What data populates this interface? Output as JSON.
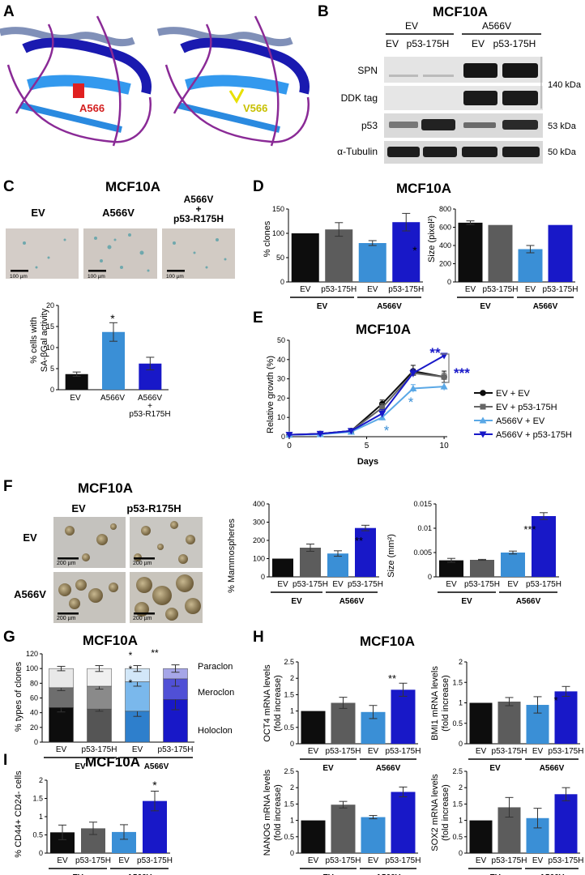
{
  "colors": {
    "ev": "#0d0d0d",
    "p53": "#5c5c5c",
    "a566v": "#3a8fd6",
    "a566v_p53": "#1818c8"
  },
  "panel_letters": {
    "a": "A",
    "b": "B",
    "c": "C",
    "d": "D",
    "e": "E",
    "f": "F",
    "g": "G",
    "h": "H",
    "i": "I"
  },
  "a": {
    "left_label": "A566",
    "right_label": "V566"
  },
  "b": {
    "title": "MCF10A",
    "group_ev": "EV",
    "group_a566v": "A566V",
    "lanes": [
      "EV",
      "p53-175H",
      "EV",
      "p53-175H"
    ],
    "rows": [
      "SPN",
      "DDK tag",
      "p53",
      "α-Tubulin"
    ],
    "kda": [
      "140 kDa",
      "53 kDa",
      "50 kDa"
    ]
  },
  "c": {
    "title": "MCF10A",
    "img_labels": [
      "EV",
      "A566V",
      "A566V",
      "+",
      "p53-R175H"
    ],
    "scale": "100 µm",
    "ylabel": [
      "% cells with",
      "SA-βGal activity"
    ],
    "xlabels": [
      "EV",
      "A566V",
      "A566V",
      "+",
      "p53-R175H"
    ],
    "star": "*"
  },
  "d": {
    "title": "MCF10A",
    "ylabel1": "% clones",
    "ylabel2": "Size (pixel²)",
    "xlabels": [
      "EV",
      "p53-175H",
      "EV",
      "p53-175H"
    ],
    "groups": [
      "EV",
      "A566V"
    ],
    "star": "*"
  },
  "e": {
    "title": "MCF10A",
    "ylabel": "Relative growth (%)",
    "xlabel": "Days",
    "legend": [
      "EV + EV",
      "EV + p53-175H",
      "A566V + EV",
      "A566V + p53-175H"
    ],
    "stars": [
      "**",
      "***",
      "*",
      "*"
    ]
  },
  "f": {
    "title": "MCF10A",
    "col_labels": [
      "EV",
      "p53-R175H"
    ],
    "row_labels": [
      "EV",
      "A566V"
    ],
    "scale": "200 µm",
    "ylabel1": "% Mammospheres",
    "ylabel2": "Size (mm²)",
    "xlabels": [
      "EV",
      "p53-175H",
      "EV",
      "p53-175H"
    ],
    "groups": [
      "EV",
      "A566V"
    ],
    "stars": [
      "**",
      "***"
    ]
  },
  "g": {
    "title": "MCF10A",
    "ylabel": "% types of clones",
    "labels": [
      "Paraclon",
      "Meroclon",
      "Holoclon"
    ],
    "xlabels": [
      "EV",
      "p53-175H",
      "EV",
      "p53-175H"
    ],
    "groups": [
      "EV",
      "A566V"
    ],
    "stars": [
      "*",
      "*",
      "*",
      "**"
    ]
  },
  "h": {
    "title": "MCF10A",
    "ylabels": [
      [
        "OCT4 mRNA levels",
        "(fold increase)"
      ],
      [
        "BMI1 mRNA levels",
        "(fold increase)"
      ],
      [
        "NANOG mRNA levels",
        "(fold increase)"
      ],
      [
        "SOX2 mRNA levels",
        "(fold increase)"
      ]
    ],
    "xlabels": [
      "EV",
      "p53-175H",
      "EV",
      "p53-175H"
    ],
    "groups": [
      "EV",
      "A566V"
    ],
    "stars": [
      "**",
      "*"
    ]
  },
  "i": {
    "title": "MCF10A",
    "ylabel": "% CD44+ CD24- cells",
    "xlabels": [
      "EV",
      "p53-175H",
      "EV",
      "p53-175H"
    ],
    "groups": [
      "EV",
      "A566V"
    ],
    "star": "*"
  },
  "chart_data": [
    {
      "id": "C-sabgal",
      "type": "bar",
      "categories": [
        "EV",
        "A566V",
        "A566V + p53-R175H"
      ],
      "values": [
        3.7,
        13.7,
        6.2
      ],
      "errors": [
        0.5,
        2.2,
        1.5
      ],
      "ylim": [
        0,
        20
      ],
      "yticks": [
        0,
        5,
        10,
        15,
        20
      ],
      "ylabel": "% cells with SA-βGal activity"
    },
    {
      "id": "D-clones",
      "type": "bar",
      "categories": [
        "EV",
        "p53-175H",
        "EV",
        "p53-175H"
      ],
      "values": [
        100,
        108,
        80,
        123
      ],
      "errors": [
        0,
        14,
        5,
        18
      ],
      "ylim": [
        0,
        150
      ],
      "yticks": [
        0,
        50,
        100,
        150
      ],
      "ylabel": "% clones"
    },
    {
      "id": "D-size",
      "type": "bar",
      "categories": [
        "EV",
        "p53-175H",
        "EV",
        "p53-175H"
      ],
      "values": [
        650,
        625,
        360,
        625
      ],
      "errors": [
        20,
        0,
        40,
        0
      ],
      "ylim": [
        0,
        800
      ],
      "yticks": [
        0,
        200,
        400,
        600,
        800
      ],
      "ylabel": "Size (pixel²)"
    },
    {
      "id": "E-growth",
      "type": "line",
      "x": [
        0,
        2,
        4,
        6,
        8,
        10
      ],
      "series": [
        {
          "name": "EV + EV",
          "values": [
            1,
            1.5,
            3,
            17,
            34,
            31
          ],
          "errors": [
            0,
            0.3,
            0.5,
            2,
            3,
            3
          ]
        },
        {
          "name": "EV + p53-175H",
          "values": [
            1,
            1.5,
            3,
            15,
            33,
            31
          ],
          "errors": [
            0,
            0.3,
            0.5,
            2,
            2,
            2
          ]
        },
        {
          "name": "A566V + EV",
          "values": [
            1,
            1.2,
            2.5,
            10,
            25,
            26
          ],
          "errors": [
            0,
            0.2,
            0.5,
            1.5,
            2,
            2
          ]
        },
        {
          "name": "A566V + p53-175H",
          "values": [
            1,
            1.5,
            3,
            12,
            33,
            42
          ],
          "errors": [
            0,
            0.3,
            0.5,
            2,
            2,
            1
          ]
        }
      ],
      "xlim": [
        0,
        10
      ],
      "ylim": [
        0,
        50
      ],
      "xticks": [
        0,
        5,
        10
      ],
      "yticks": [
        0,
        10,
        20,
        30,
        40,
        50
      ],
      "xlabel": "Days",
      "ylabel": "Relative growth (%)"
    },
    {
      "id": "F-mammospheres",
      "type": "bar",
      "categories": [
        "EV",
        "p53-175H",
        "EV",
        "p53-175H"
      ],
      "values": [
        100,
        160,
        128,
        268
      ],
      "errors": [
        0,
        20,
        15,
        15
      ],
      "ylim": [
        0,
        400
      ],
      "yticks": [
        0,
        100,
        200,
        300,
        400
      ],
      "ylabel": "% Mammospheres"
    },
    {
      "id": "F-size",
      "type": "bar",
      "categories": [
        "EV",
        "p53-175H",
        "EV",
        "p53-175H"
      ],
      "values": [
        0.0034,
        0.0035,
        0.005,
        0.0125
      ],
      "errors": [
        0.0004,
        0.0001,
        0.0003,
        0.0007
      ],
      "ylim": [
        0,
        0.015
      ],
      "yticks": [
        0,
        0.005,
        0.01,
        0.015
      ],
      "yticklabels": [
        "0",
        "0.005",
        "0.01",
        "0.015"
      ],
      "ylabel": "Size (mm²)"
    },
    {
      "id": "G-clonetypes",
      "type": "bar",
      "stacked": true,
      "categories": [
        "EV",
        "p53-175H",
        "EV",
        "p53-175H"
      ],
      "series": [
        {
          "name": "Holoclon",
          "values": [
            47,
            45,
            42,
            58
          ],
          "errors": [
            6,
            3,
            7,
            14
          ]
        },
        {
          "name": "Meroclon",
          "values": [
            27,
            31,
            40,
            28
          ],
          "errors": [
            4,
            4,
            6,
            10
          ]
        },
        {
          "name": "Paraclon",
          "values": [
            26,
            24,
            18,
            14
          ],
          "errors": [
            3,
            4,
            4,
            5
          ]
        }
      ],
      "ylim": [
        0,
        120
      ],
      "yticks": [
        0,
        20,
        40,
        60,
        80,
        100,
        120
      ],
      "ylabel": "% types of clones"
    },
    {
      "id": "H-OCT4",
      "type": "bar",
      "categories": [
        "EV",
        "p53-175H",
        "EV",
        "p53-175H"
      ],
      "values": [
        1,
        1.25,
        0.97,
        1.65
      ],
      "errors": [
        0,
        0.17,
        0.2,
        0.2
      ],
      "ylim": [
        0,
        2.5
      ],
      "yticks": [
        0,
        0.5,
        1,
        1.5,
        2,
        2.5
      ],
      "ylabel": "OCT4 mRNA levels (fold increase)"
    },
    {
      "id": "H-BMI1",
      "type": "bar",
      "categories": [
        "EV",
        "p53-175H",
        "EV",
        "p53-175H"
      ],
      "values": [
        1,
        1.03,
        0.95,
        1.28
      ],
      "errors": [
        0,
        0.1,
        0.2,
        0.12
      ],
      "ylim": [
        0,
        2
      ],
      "yticks": [
        0,
        0.5,
        1,
        1.5,
        2
      ],
      "ylabel": "BMI1 mRNA levels (fold increase)"
    },
    {
      "id": "H-NANOG",
      "type": "bar",
      "categories": [
        "EV",
        "p53-175H",
        "EV",
        "p53-175H"
      ],
      "values": [
        1,
        1.48,
        1.1,
        1.87
      ],
      "errors": [
        0,
        0.1,
        0.05,
        0.15
      ],
      "ylim": [
        0,
        2.5
      ],
      "yticks": [
        0,
        0.5,
        1,
        1.5,
        2,
        2.5
      ],
      "ylabel": "NANOG mRNA levels (fold increase)"
    },
    {
      "id": "H-SOX2",
      "type": "bar",
      "categories": [
        "EV",
        "p53-175H",
        "EV",
        "p53-175H"
      ],
      "values": [
        1,
        1.4,
        1.07,
        1.8
      ],
      "errors": [
        0,
        0.3,
        0.3,
        0.2
      ],
      "ylim": [
        0,
        2.5
      ],
      "yticks": [
        0,
        0.5,
        1,
        1.5,
        2,
        2.5
      ],
      "ylabel": "SOX2 mRNA levels (fold increase)"
    },
    {
      "id": "I-cd44",
      "type": "bar",
      "categories": [
        "EV",
        "p53-175H",
        "EV",
        "p53-175H"
      ],
      "values": [
        0.57,
        0.68,
        0.58,
        1.43
      ],
      "errors": [
        0.2,
        0.17,
        0.2,
        0.27
      ],
      "ylim": [
        0,
        2
      ],
      "yticks": [
        0,
        0.5,
        1,
        1.5,
        2
      ],
      "ylabel": "% CD44+ CD24- cells"
    }
  ]
}
